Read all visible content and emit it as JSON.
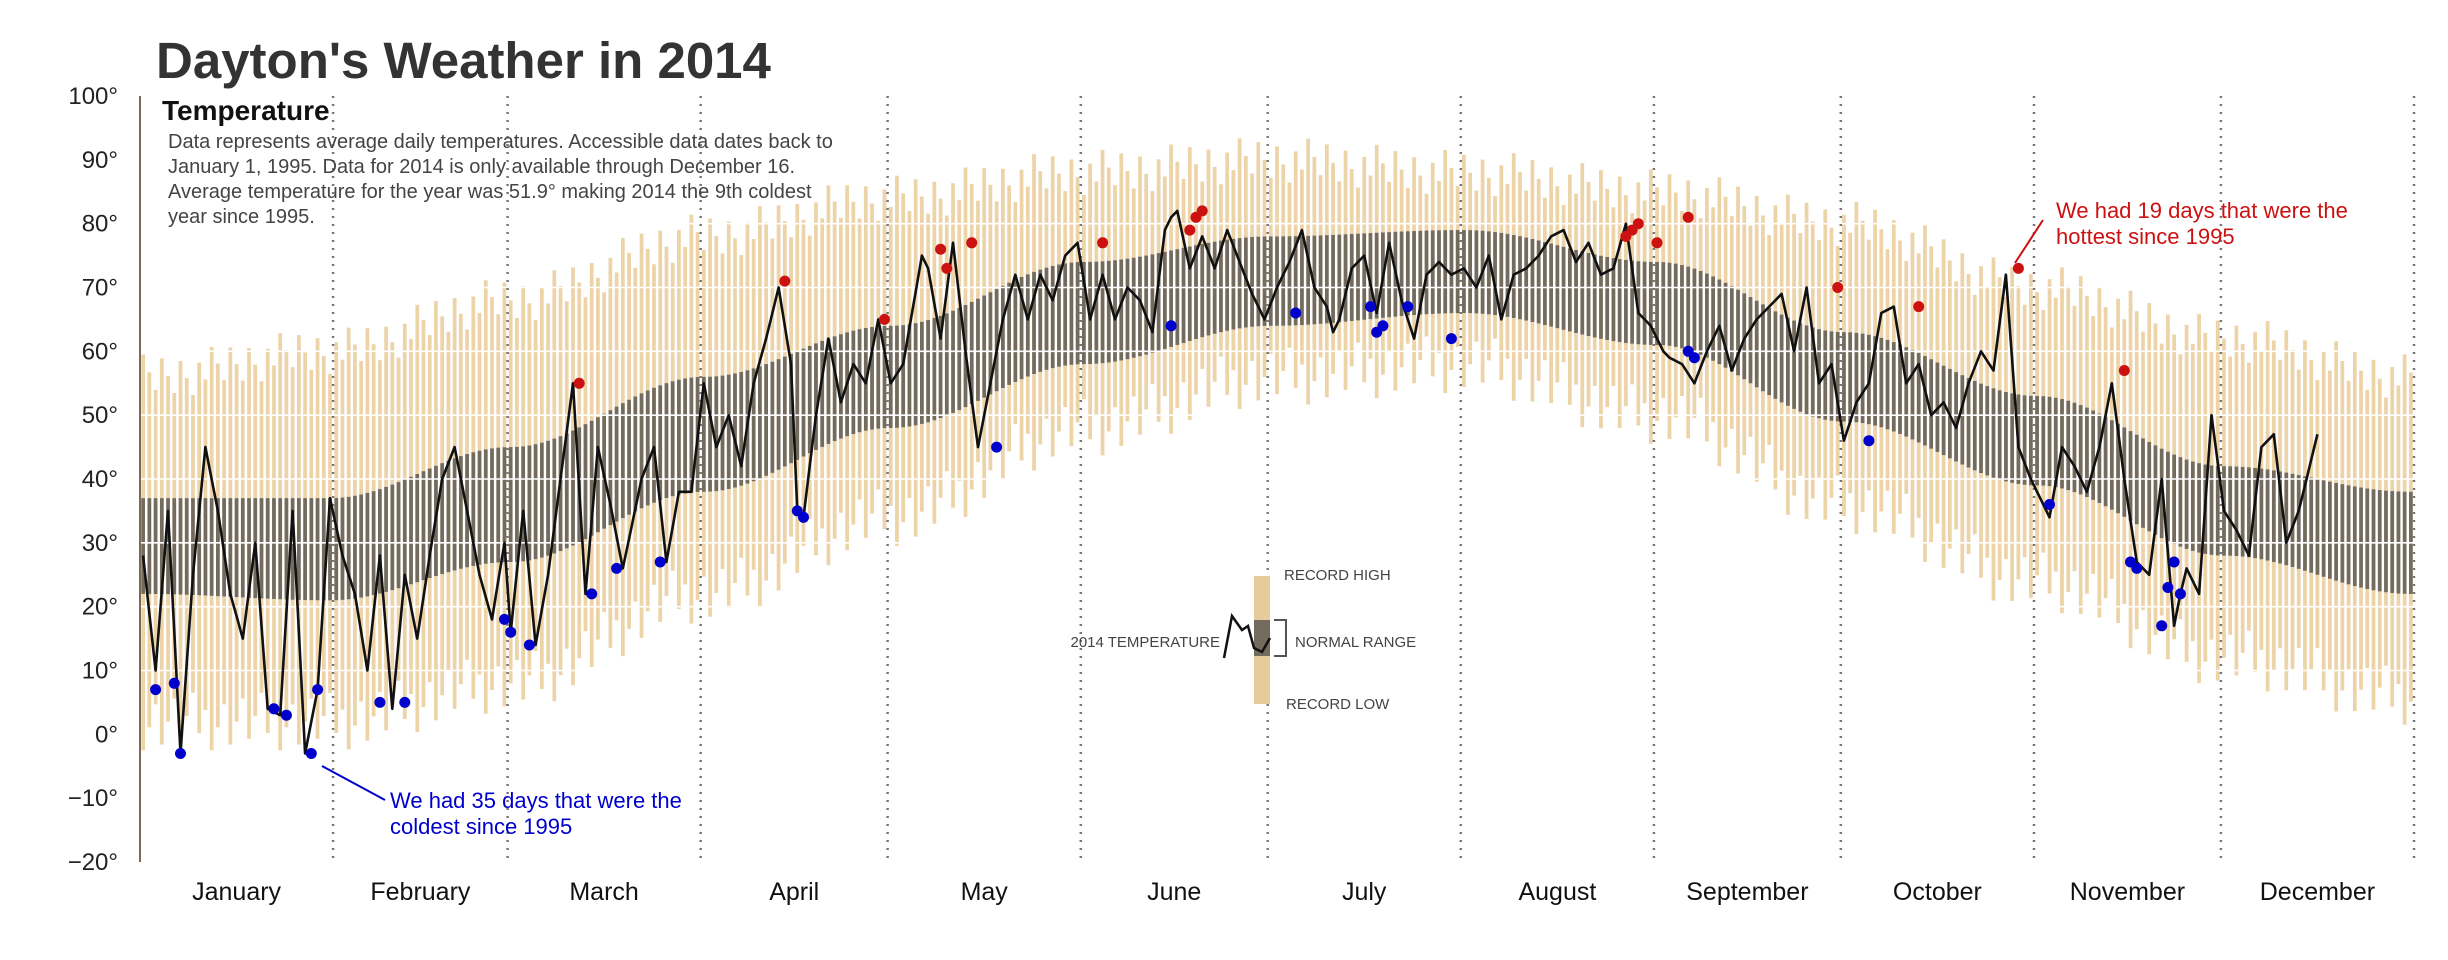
{
  "chart_data": {
    "type": "bar",
    "title": "Dayton's Weather in 2014",
    "subtitle": "Temperature",
    "description_lines": [
      "Data represents average daily temperatures. Accessible data dates back to",
      "January 1, 1995. Data for 2014 is only available through December 16.",
      "Average temperature for the year was 51.9° making 2014 the 9th coldest",
      "year since 1995."
    ],
    "ylim": [
      -20,
      100
    ],
    "y_ticks": [
      {
        "value": 100,
        "label": "100°"
      },
      {
        "value": 90,
        "label": "90°"
      },
      {
        "value": 80,
        "label": "80°"
      },
      {
        "value": 70,
        "label": "70°"
      },
      {
        "value": 60,
        "label": "60°"
      },
      {
        "value": 50,
        "label": "50°"
      },
      {
        "value": 40,
        "label": "40°"
      },
      {
        "value": 30,
        "label": "30°"
      },
      {
        "value": 20,
        "label": "20°"
      },
      {
        "value": 10,
        "label": "10°"
      },
      {
        "value": 0,
        "label": "0°"
      },
      {
        "value": -10,
        "label": "−10°"
      },
      {
        "value": -20,
        "label": "−20°"
      }
    ],
    "grid_values": [
      10,
      20,
      30,
      40,
      50,
      60,
      70,
      80
    ],
    "months": [
      "January",
      "February",
      "March",
      "April",
      "May",
      "June",
      "July",
      "August",
      "September",
      "October",
      "November",
      "December"
    ],
    "month_days": [
      31,
      28,
      31,
      30,
      31,
      30,
      31,
      31,
      30,
      31,
      30,
      31
    ],
    "days_in_year": 365,
    "temp_2014_days": 350,
    "normal_low_anchors": [
      [
        0,
        22
      ],
      [
        30,
        21
      ],
      [
        59,
        27
      ],
      [
        90,
        38
      ],
      [
        120,
        48
      ],
      [
        151,
        58
      ],
      [
        181,
        64
      ],
      [
        212,
        66
      ],
      [
        243,
        61
      ],
      [
        273,
        49
      ],
      [
        304,
        39
      ],
      [
        334,
        28
      ],
      [
        364,
        22
      ]
    ],
    "normal_high_anchors": [
      [
        0,
        37
      ],
      [
        30,
        37
      ],
      [
        59,
        45
      ],
      [
        90,
        56
      ],
      [
        120,
        64
      ],
      [
        151,
        74
      ],
      [
        181,
        78
      ],
      [
        212,
        79
      ],
      [
        243,
        74
      ],
      [
        273,
        63
      ],
      [
        304,
        53
      ],
      [
        334,
        42
      ],
      [
        364,
        38
      ]
    ],
    "record_low_anchors": [
      [
        0,
        2
      ],
      [
        30,
        2
      ],
      [
        59,
        8
      ],
      [
        90,
        22
      ],
      [
        120,
        34
      ],
      [
        151,
        48
      ],
      [
        181,
        56
      ],
      [
        212,
        58
      ],
      [
        243,
        50
      ],
      [
        273,
        36
      ],
      [
        304,
        24
      ],
      [
        334,
        12
      ],
      [
        364,
        6
      ]
    ],
    "record_high_anchors": [
      [
        0,
        56
      ],
      [
        30,
        60
      ],
      [
        59,
        68
      ],
      [
        90,
        78
      ],
      [
        120,
        84
      ],
      [
        151,
        88
      ],
      [
        181,
        90
      ],
      [
        212,
        88
      ],
      [
        243,
        85
      ],
      [
        273,
        80
      ],
      [
        304,
        70
      ],
      [
        334,
        62
      ],
      [
        364,
        56
      ]
    ],
    "temp_anchors": [
      [
        0,
        28
      ],
      [
        2,
        10
      ],
      [
        4,
        35
      ],
      [
        6,
        -3
      ],
      [
        8,
        25
      ],
      [
        10,
        45
      ],
      [
        12,
        35
      ],
      [
        14,
        22
      ],
      [
        16,
        15
      ],
      [
        18,
        30
      ],
      [
        20,
        4
      ],
      [
        22,
        3
      ],
      [
        24,
        35
      ],
      [
        26,
        -3
      ],
      [
        28,
        7
      ],
      [
        30,
        37
      ],
      [
        32,
        28
      ],
      [
        34,
        22
      ],
      [
        36,
        10
      ],
      [
        38,
        28
      ],
      [
        40,
        4
      ],
      [
        42,
        25
      ],
      [
        44,
        15
      ],
      [
        46,
        28
      ],
      [
        48,
        40
      ],
      [
        50,
        45
      ],
      [
        52,
        35
      ],
      [
        54,
        25
      ],
      [
        56,
        18
      ],
      [
        58,
        30
      ],
      [
        59,
        16
      ],
      [
        61,
        35
      ],
      [
        63,
        14
      ],
      [
        65,
        25
      ],
      [
        67,
        40
      ],
      [
        69,
        55
      ],
      [
        71,
        22
      ],
      [
        73,
        45
      ],
      [
        75,
        36
      ],
      [
        77,
        26
      ],
      [
        80,
        40
      ],
      [
        82,
        45
      ],
      [
        84,
        27
      ],
      [
        86,
        38
      ],
      [
        88,
        38
      ],
      [
        90,
        55
      ],
      [
        92,
        45
      ],
      [
        94,
        50
      ],
      [
        96,
        42
      ],
      [
        98,
        55
      ],
      [
        100,
        62
      ],
      [
        102,
        70
      ],
      [
        104,
        58
      ],
      [
        105,
        35
      ],
      [
        106,
        34
      ],
      [
        108,
        50
      ],
      [
        110,
        62
      ],
      [
        112,
        52
      ],
      [
        114,
        58
      ],
      [
        116,
        55
      ],
      [
        118,
        65
      ],
      [
        120,
        55
      ],
      [
        122,
        58
      ],
      [
        125,
        75
      ],
      [
        126,
        73
      ],
      [
        128,
        62
      ],
      [
        130,
        77
      ],
      [
        132,
        60
      ],
      [
        134,
        45
      ],
      [
        136,
        55
      ],
      [
        138,
        65
      ],
      [
        140,
        72
      ],
      [
        142,
        65
      ],
      [
        144,
        72
      ],
      [
        146,
        68
      ],
      [
        148,
        75
      ],
      [
        150,
        77
      ],
      [
        152,
        65
      ],
      [
        154,
        72
      ],
      [
        156,
        65
      ],
      [
        158,
        70
      ],
      [
        160,
        68
      ],
      [
        162,
        63
      ],
      [
        164,
        79
      ],
      [
        165,
        81
      ],
      [
        166,
        82
      ],
      [
        168,
        73
      ],
      [
        170,
        78
      ],
      [
        172,
        73
      ],
      [
        174,
        79
      ],
      [
        176,
        74
      ],
      [
        178,
        69
      ],
      [
        180,
        65
      ],
      [
        182,
        70
      ],
      [
        184,
        74
      ],
      [
        186,
        79
      ],
      [
        188,
        70
      ],
      [
        190,
        67
      ],
      [
        191,
        63
      ],
      [
        192,
        65
      ],
      [
        194,
        73
      ],
      [
        196,
        75
      ],
      [
        198,
        66
      ],
      [
        200,
        77
      ],
      [
        202,
        68
      ],
      [
        204,
        62
      ],
      [
        206,
        72
      ],
      [
        208,
        74
      ],
      [
        210,
        72
      ],
      [
        212,
        73
      ],
      [
        214,
        70
      ],
      [
        216,
        75
      ],
      [
        218,
        65
      ],
      [
        220,
        72
      ],
      [
        222,
        73
      ],
      [
        224,
        75
      ],
      [
        226,
        78
      ],
      [
        228,
        79
      ],
      [
        230,
        74
      ],
      [
        232,
        77
      ],
      [
        234,
        72
      ],
      [
        236,
        73
      ],
      [
        238,
        80
      ],
      [
        240,
        66
      ],
      [
        242,
        64
      ],
      [
        244,
        60
      ],
      [
        245,
        59
      ],
      [
        247,
        58
      ],
      [
        249,
        55
      ],
      [
        251,
        60
      ],
      [
        253,
        64
      ],
      [
        255,
        57
      ],
      [
        257,
        62
      ],
      [
        259,
        65
      ],
      [
        261,
        67
      ],
      [
        263,
        69
      ],
      [
        265,
        60
      ],
      [
        267,
        70
      ],
      [
        269,
        55
      ],
      [
        271,
        58
      ],
      [
        273,
        46
      ],
      [
        275,
        52
      ],
      [
        277,
        55
      ],
      [
        279,
        66
      ],
      [
        281,
        67
      ],
      [
        283,
        55
      ],
      [
        285,
        58
      ],
      [
        287,
        50
      ],
      [
        289,
        52
      ],
      [
        291,
        48
      ],
      [
        293,
        55
      ],
      [
        295,
        60
      ],
      [
        297,
        57
      ],
      [
        299,
        72
      ],
      [
        301,
        45
      ],
      [
        303,
        40
      ],
      [
        305,
        36
      ],
      [
        306,
        34
      ],
      [
        308,
        45
      ],
      [
        310,
        42
      ],
      [
        312,
        38
      ],
      [
        314,
        45
      ],
      [
        316,
        55
      ],
      [
        318,
        40
      ],
      [
        320,
        27
      ],
      [
        322,
        25
      ],
      [
        324,
        40
      ],
      [
        326,
        17
      ],
      [
        327,
        22
      ],
      [
        328,
        26
      ],
      [
        330,
        22
      ],
      [
        332,
        50
      ],
      [
        334,
        35
      ],
      [
        336,
        32
      ],
      [
        338,
        28
      ],
      [
        340,
        45
      ],
      [
        342,
        47
      ],
      [
        344,
        30
      ],
      [
        346,
        35
      ],
      [
        349,
        47
      ]
    ],
    "cold_days": [
      [
        2,
        7
      ],
      [
        5,
        8
      ],
      [
        6,
        -3
      ],
      [
        21,
        4
      ],
      [
        23,
        3
      ],
      [
        27,
        -3
      ],
      [
        28,
        7
      ],
      [
        38,
        5
      ],
      [
        42,
        5
      ],
      [
        58,
        18
      ],
      [
        59,
        16
      ],
      [
        62,
        14
      ],
      [
        72,
        22
      ],
      [
        76,
        26
      ],
      [
        83,
        27
      ],
      [
        105,
        35
      ],
      [
        106,
        34
      ],
      [
        137,
        45
      ],
      [
        165,
        64
      ],
      [
        185,
        66
      ],
      [
        197,
        67
      ],
      [
        198,
        63
      ],
      [
        199,
        64
      ],
      [
        203,
        67
      ],
      [
        210,
        62
      ],
      [
        248,
        60
      ],
      [
        249,
        59
      ],
      [
        277,
        46
      ],
      [
        306,
        36
      ],
      [
        319,
        27
      ],
      [
        320,
        26
      ],
      [
        324,
        17
      ],
      [
        325,
        23
      ],
      [
        326,
        27
      ],
      [
        327,
        22
      ]
    ],
    "hot_days": [
      [
        70,
        55
      ],
      [
        103,
        71
      ],
      [
        119,
        65
      ],
      [
        128,
        76
      ],
      [
        129,
        73
      ],
      [
        133,
        77
      ],
      [
        154,
        77
      ],
      [
        168,
        79
      ],
      [
        169,
        81
      ],
      [
        170,
        82
      ],
      [
        238,
        78
      ],
      [
        239,
        79
      ],
      [
        240,
        80
      ],
      [
        243,
        77
      ],
      [
        248,
        81
      ],
      [
        272,
        70
      ],
      [
        285,
        67
      ],
      [
        301,
        73
      ],
      [
        318,
        57
      ]
    ],
    "annotations": {
      "cold": [
        "We had 35 days that were the",
        "coldest since 1995"
      ],
      "hot": [
        "We had 19 days that were the",
        "hottest since 1995"
      ]
    },
    "legend": {
      "record_high": "RECORD HIGH",
      "record_low": "RECORD LOW",
      "normal_range": "NORMAL RANGE",
      "temperature_2014": "2014 TEMPERATURE"
    },
    "colors": {
      "record_range": "#edd3a8",
      "normal_range": "#746b5f",
      "line": "#111111",
      "cold": "#0000cc",
      "hot": "#cc1111",
      "month_divider": "#777777",
      "grid": "#ffffff"
    }
  }
}
